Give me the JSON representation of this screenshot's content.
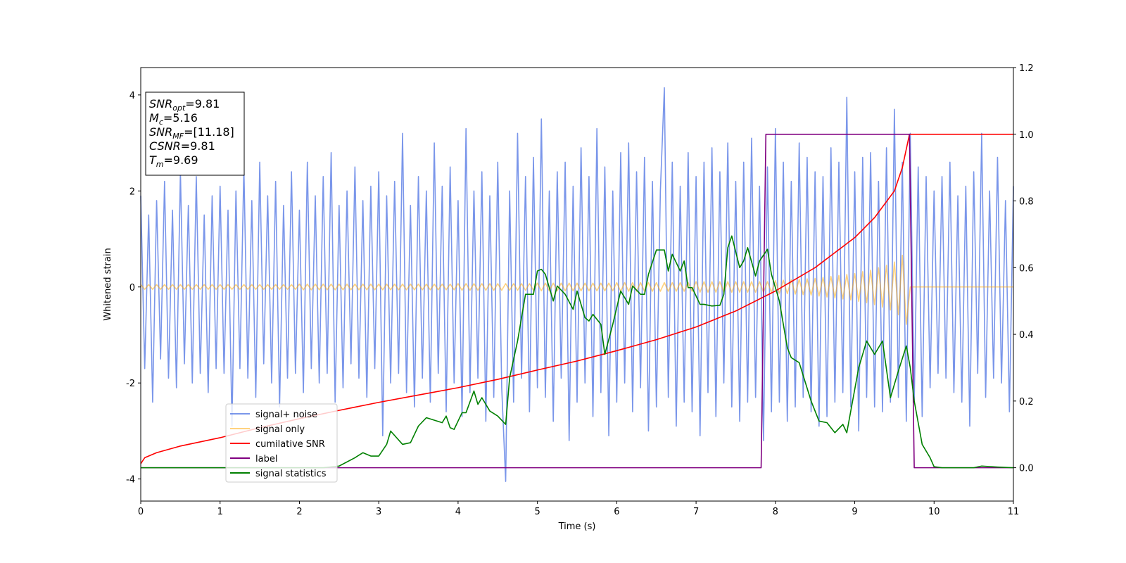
{
  "chart_data": {
    "type": "line",
    "xlabel": "Time (s)",
    "ylabel": "Whitened strain",
    "xlim": [
      0,
      11
    ],
    "xticks": [
      0,
      1,
      2,
      3,
      4,
      5,
      6,
      7,
      8,
      9,
      10,
      11
    ],
    "ylim": [
      -4.46,
      4.57
    ],
    "yticks": [
      -4,
      -2,
      0,
      2,
      4
    ],
    "y2lim": [
      -0.1,
      1.2
    ],
    "y2ticks": [
      {
        "value": 0,
        "label": "0.0"
      },
      {
        "value": 0.2,
        "label": "0.2"
      },
      {
        "value": 0.4,
        "label": "0.4"
      },
      {
        "value": 0.6,
        "label": "0.6"
      },
      {
        "value": 0.8,
        "label": "0.8"
      },
      {
        "value": 1,
        "label": "1.0"
      },
      {
        "value": 1.2,
        "label": "1.2"
      }
    ],
    "legend": "lower left",
    "x": [
      0,
      0.05,
      0.1,
      0.15,
      0.2,
      0.25,
      0.3,
      0.35,
      0.4,
      0.45,
      0.5,
      0.55,
      0.6,
      0.65,
      0.7,
      0.75,
      0.8,
      0.85,
      0.9,
      0.95,
      1,
      1.05,
      1.1,
      1.15,
      1.2,
      1.25,
      1.3,
      1.35,
      1.4,
      1.45,
      1.5,
      1.55,
      1.6,
      1.65,
      1.7,
      1.75,
      1.8,
      1.85,
      1.9,
      1.95,
      2,
      2.05,
      2.1,
      2.15,
      2.2,
      2.25,
      2.3,
      2.35,
      2.4,
      2.45,
      2.5,
      2.55,
      2.6,
      2.65,
      2.7,
      2.75,
      2.8,
      2.85,
      2.9,
      2.95,
      3,
      3.05,
      3.1,
      3.15,
      3.2,
      3.25,
      3.3,
      3.35,
      3.4,
      3.45,
      3.5,
      3.55,
      3.6,
      3.65,
      3.7,
      3.75,
      3.8,
      3.85,
      3.9,
      3.95,
      4,
      4.05,
      4.1,
      4.15,
      4.2,
      4.25,
      4.3,
      4.35,
      4.4,
      4.45,
      4.5,
      4.55,
      4.6,
      4.65,
      4.7,
      4.75,
      4.8,
      4.85,
      4.9,
      4.95,
      5,
      5.05,
      5.1,
      5.15,
      5.2,
      5.25,
      5.3,
      5.35,
      5.4,
      5.45,
      5.5,
      5.55,
      5.6,
      5.65,
      5.7,
      5.75,
      5.8,
      5.85,
      5.9,
      5.95,
      6,
      6.05,
      6.1,
      6.15,
      6.2,
      6.25,
      6.3,
      6.35,
      6.4,
      6.45,
      6.5,
      6.55,
      6.6,
      6.65,
      6.7,
      6.75,
      6.8,
      6.85,
      6.9,
      6.95,
      7,
      7.05,
      7.1,
      7.15,
      7.2,
      7.25,
      7.3,
      7.35,
      7.4,
      7.45,
      7.5,
      7.55,
      7.6,
      7.65,
      7.7,
      7.75,
      7.8,
      7.85,
      7.9,
      7.95,
      8,
      8.05,
      8.1,
      8.15,
      8.2,
      8.25,
      8.3,
      8.35,
      8.4,
      8.45,
      8.5,
      8.55,
      8.6,
      8.65,
      8.7,
      8.75,
      8.8,
      8.85,
      8.9,
      8.95,
      9,
      9.05,
      9.1,
      9.15,
      9.2,
      9.25,
      9.3,
      9.35,
      9.4,
      9.45,
      9.5,
      9.55,
      9.6,
      9.65,
      9.7,
      9.75,
      9.8,
      9.85,
      9.9,
      9.95,
      10,
      10.05,
      10.1,
      10.15,
      10.2,
      10.25,
      10.3,
      10.35,
      10.4,
      10.45,
      10.5,
      10.55,
      10.6,
      10.65,
      10.7,
      10.75,
      10.8,
      10.85,
      10.9,
      10.95,
      11
    ],
    "series": [
      {
        "name": "signal+ noise",
        "color": "#4169e1",
        "alpha": 0.7,
        "values": [
          1.9,
          -1.7,
          1.5,
          -2.4,
          1.8,
          -1.5,
          2.2,
          -1.9,
          1.6,
          -2.1,
          2.4,
          -1.6,
          1.7,
          -2.0,
          2.3,
          -1.8,
          1.5,
          -2.2,
          1.9,
          -1.7,
          2.1,
          -1.8,
          1.6,
          -2.9,
          2.0,
          -1.7,
          2.5,
          -1.9,
          1.8,
          -2.3,
          2.6,
          -1.6,
          1.9,
          -2.0,
          2.2,
          -2.5,
          1.7,
          -1.9,
          2.4,
          -1.8,
          1.6,
          -2.2,
          2.6,
          -1.7,
          1.9,
          -2.0,
          2.3,
          -1.8,
          2.8,
          -2.4,
          1.7,
          -2.1,
          2.0,
          -1.6,
          2.5,
          -1.9,
          1.8,
          -2.3,
          2.1,
          -1.7,
          2.4,
          -3.1,
          1.9,
          -2.0,
          2.2,
          -1.8,
          3.2,
          -2.2,
          1.7,
          -2.5,
          2.3,
          -1.9,
          2.0,
          -2.4,
          3.0,
          -1.8,
          2.1,
          -2.6,
          2.5,
          -2.0,
          1.8,
          -2.7,
          3.3,
          -2.2,
          2.0,
          -1.9,
          2.4,
          -2.8,
          1.9,
          -2.3,
          2.6,
          -2.1,
          -4.05,
          2.0,
          -2.4,
          3.2,
          -1.9,
          2.3,
          -2.6,
          2.7,
          -2.1,
          3.5,
          -2.3,
          2.0,
          -2.8,
          2.4,
          -1.9,
          2.6,
          -3.2,
          2.1,
          -2.4,
          2.9,
          -2.0,
          2.3,
          -2.7,
          3.3,
          -2.2,
          2.5,
          -3.1,
          2.0,
          -2.4,
          2.8,
          -2.0,
          3.0,
          -2.6,
          2.4,
          -2.1,
          2.7,
          -3.0,
          2.2,
          -2.5,
          2.0,
          4.15,
          -2.3,
          2.6,
          -2.9,
          2.1,
          -2.4,
          2.8,
          -2.6,
          2.3,
          -3.1,
          2.6,
          -2.2,
          2.9,
          -2.7,
          2.4,
          -2.0,
          3.0,
          -2.5,
          2.2,
          -2.8,
          2.6,
          -2.4,
          3.1,
          -2.3,
          2.1,
          -3.2,
          2.5,
          -2.6,
          3.3,
          -2.4,
          2.6,
          -2.8,
          2.2,
          -2.5,
          3.0,
          -2.3,
          2.7,
          -2.6,
          2.4,
          -2.9,
          2.3,
          -2.7,
          2.9,
          -2.4,
          2.6,
          -2.2,
          3.95,
          -2.5,
          2.4,
          -3.0,
          2.7,
          -2.3,
          2.8,
          -2.5,
          2.2,
          -2.6,
          2.9,
          -2.4,
          3.7,
          -2.3,
          2.6,
          -2.8,
          3.2,
          -2.4,
          2.5,
          -2.7,
          2.3,
          -2.1,
          2.0,
          -1.8,
          2.3,
          -1.9,
          2.6,
          -2.2,
          1.9,
          -2.4,
          2.1,
          -2.9,
          2.4,
          -1.8,
          3.2,
          -2.3,
          2.0,
          -1.9,
          2.7,
          -2.0,
          1.8,
          -2.6,
          2.1
        ]
      },
      {
        "name": "signal only",
        "color": "#ffa500",
        "alpha": 0.5,
        "values": [
          0.05,
          -0.05,
          0.05,
          -0.05,
          0.05,
          -0.05,
          0.05,
          -0.05,
          0.05,
          -0.05,
          0.05,
          -0.05,
          0.05,
          -0.05,
          0.05,
          -0.05,
          0.05,
          -0.05,
          0.05,
          -0.05,
          0.05,
          -0.05,
          0.05,
          -0.05,
          0.05,
          -0.05,
          0.05,
          -0.05,
          0.05,
          -0.05,
          0.05,
          -0.05,
          0.05,
          -0.05,
          0.05,
          -0.05,
          0.05,
          -0.05,
          0.05,
          -0.05,
          0.06,
          -0.06,
          0.06,
          -0.06,
          0.06,
          -0.06,
          0.06,
          -0.06,
          0.06,
          -0.06,
          0.06,
          -0.06,
          0.06,
          -0.06,
          0.06,
          -0.06,
          0.06,
          -0.06,
          0.06,
          -0.06,
          0.06,
          -0.06,
          0.06,
          -0.06,
          0.06,
          -0.06,
          0.06,
          -0.06,
          0.06,
          -0.06,
          0.06,
          -0.06,
          0.06,
          -0.06,
          0.06,
          -0.06,
          0.06,
          -0.06,
          0.06,
          -0.06,
          0.07,
          -0.07,
          0.07,
          -0.07,
          0.07,
          -0.07,
          0.07,
          -0.07,
          0.07,
          -0.07,
          0.07,
          -0.07,
          0.07,
          -0.07,
          0.07,
          -0.07,
          0.07,
          -0.07,
          0.07,
          -0.07,
          0.08,
          -0.08,
          0.08,
          -0.08,
          0.08,
          -0.08,
          0.08,
          -0.08,
          0.08,
          -0.08,
          0.08,
          -0.08,
          0.08,
          -0.08,
          0.08,
          -0.08,
          0.08,
          -0.08,
          0.08,
          -0.08,
          0.09,
          -0.09,
          0.09,
          -0.09,
          0.09,
          -0.09,
          0.09,
          -0.09,
          0.09,
          -0.09,
          0.09,
          -0.09,
          0.09,
          -0.09,
          0.09,
          -0.09,
          0.09,
          -0.09,
          0.09,
          -0.09,
          0.11,
          -0.11,
          0.11,
          -0.11,
          0.11,
          -0.11,
          0.11,
          -0.11,
          0.11,
          -0.11,
          0.11,
          -0.11,
          0.11,
          -0.11,
          0.11,
          -0.11,
          0.11,
          -0.11,
          0.11,
          -0.11,
          0.13,
          -0.13,
          0.14,
          -0.14,
          0.15,
          -0.15,
          0.16,
          -0.16,
          0.17,
          -0.17,
          0.18,
          -0.19,
          0.2,
          -0.21,
          0.22,
          -0.23,
          0.24,
          -0.25,
          0.26,
          -0.27,
          0.28,
          -0.3,
          0.32,
          -0.33,
          0.35,
          -0.37,
          0.4,
          -0.42,
          0.45,
          -0.48,
          0.52,
          -0.58,
          0.66,
          -0.78,
          0,
          0,
          0,
          0,
          0,
          0,
          0,
          0,
          0,
          0,
          0,
          0,
          0,
          0,
          0,
          0,
          0,
          0,
          0,
          0,
          0,
          0,
          0,
          0,
          0,
          0,
          0
        ]
      },
      {
        "name": "cumilative SNR",
        "color": "#ff0000",
        "axis": "y2",
        "x": [
          0,
          0.05,
          0.2,
          0.5,
          1,
          1.5,
          2,
          2.5,
          3,
          3.5,
          4,
          4.5,
          5,
          5.5,
          6,
          6.5,
          7,
          7.5,
          8,
          8.5,
          9,
          9.25,
          9.5,
          9.6,
          9.69,
          11
        ],
        "values": [
          0.012,
          0.03,
          0.045,
          0.065,
          0.09,
          0.12,
          0.147,
          0.172,
          0.196,
          0.218,
          0.24,
          0.265,
          0.293,
          0.32,
          0.351,
          0.384,
          0.422,
          0.47,
          0.53,
          0.6,
          0.69,
          0.75,
          0.83,
          0.9,
          1,
          1
        ]
      },
      {
        "name": "label",
        "color": "#800080",
        "axis": "y2",
        "x": [
          0,
          7.82,
          7.88,
          9.69,
          9.75,
          11
        ],
        "values": [
          0,
          0,
          1,
          1,
          0,
          0
        ]
      },
      {
        "name": "signal statistics",
        "color": "#008000",
        "axis": "y2",
        "x": [
          0,
          2.3,
          2.5,
          2.7,
          2.8,
          2.9,
          3.0,
          3.1,
          3.15,
          3.3,
          3.4,
          3.5,
          3.6,
          3.8,
          3.85,
          3.9,
          3.95,
          4.05,
          4.1,
          4.2,
          4.25,
          4.3,
          4.4,
          4.5,
          4.6,
          4.65,
          4.75,
          4.85,
          4.95,
          5.0,
          5.05,
          5.1,
          5.2,
          5.25,
          5.35,
          5.45,
          5.5,
          5.6,
          5.65,
          5.7,
          5.8,
          5.85,
          5.95,
          6.05,
          6.15,
          6.2,
          6.3,
          6.35,
          6.4,
          6.5,
          6.6,
          6.65,
          6.7,
          6.8,
          6.85,
          6.9,
          6.95,
          7.05,
          7.1,
          7.2,
          7.3,
          7.35,
          7.4,
          7.45,
          7.55,
          7.6,
          7.65,
          7.75,
          7.8,
          7.9,
          7.95,
          8.05,
          8.15,
          8.2,
          8.3,
          8.45,
          8.55,
          8.65,
          8.75,
          8.85,
          8.9,
          8.95,
          9.05,
          9.15,
          9.25,
          9.35,
          9.45,
          9.55,
          9.65,
          9.7,
          9.75,
          9.85,
          9.95,
          10.0,
          10.1,
          10.5,
          10.6,
          10.8,
          11
        ],
        "values": [
          0,
          0,
          0.005,
          0.03,
          0.045,
          0.035,
          0.035,
          0.07,
          0.11,
          0.07,
          0.075,
          0.125,
          0.15,
          0.135,
          0.155,
          0.12,
          0.115,
          0.165,
          0.165,
          0.23,
          0.19,
          0.21,
          0.17,
          0.155,
          0.13,
          0.27,
          0.38,
          0.52,
          0.52,
          0.59,
          0.595,
          0.58,
          0.5,
          0.545,
          0.52,
          0.475,
          0.53,
          0.45,
          0.44,
          0.46,
          0.43,
          0.34,
          0.43,
          0.53,
          0.49,
          0.545,
          0.52,
          0.52,
          0.58,
          0.653,
          0.653,
          0.59,
          0.64,
          0.59,
          0.62,
          0.54,
          0.54,
          0.49,
          0.49,
          0.485,
          0.487,
          0.52,
          0.66,
          0.695,
          0.6,
          0.62,
          0.66,
          0.575,
          0.62,
          0.655,
          0.58,
          0.5,
          0.36,
          0.33,
          0.315,
          0.2,
          0.14,
          0.135,
          0.105,
          0.13,
          0.105,
          0.17,
          0.3,
          0.38,
          0.34,
          0.38,
          0.21,
          0.29,
          0.365,
          0.3,
          0.2,
          0.07,
          0.03,
          0.003,
          0,
          0,
          0.005,
          0.002,
          0
        ]
      }
    ],
    "annotations": [
      {
        "symbol": "SNR",
        "subscript": "opt",
        "text": "=9.81"
      },
      {
        "symbol": "M",
        "subscript": "c",
        "text": "=5.16"
      },
      {
        "symbol": "SNR",
        "subscript": "MF",
        "text": "=[11.18]"
      },
      {
        "symbol": "CSNR",
        "text": "=9.81"
      },
      {
        "symbol": "T",
        "subscript": "m",
        "text": "=9.69"
      }
    ]
  }
}
